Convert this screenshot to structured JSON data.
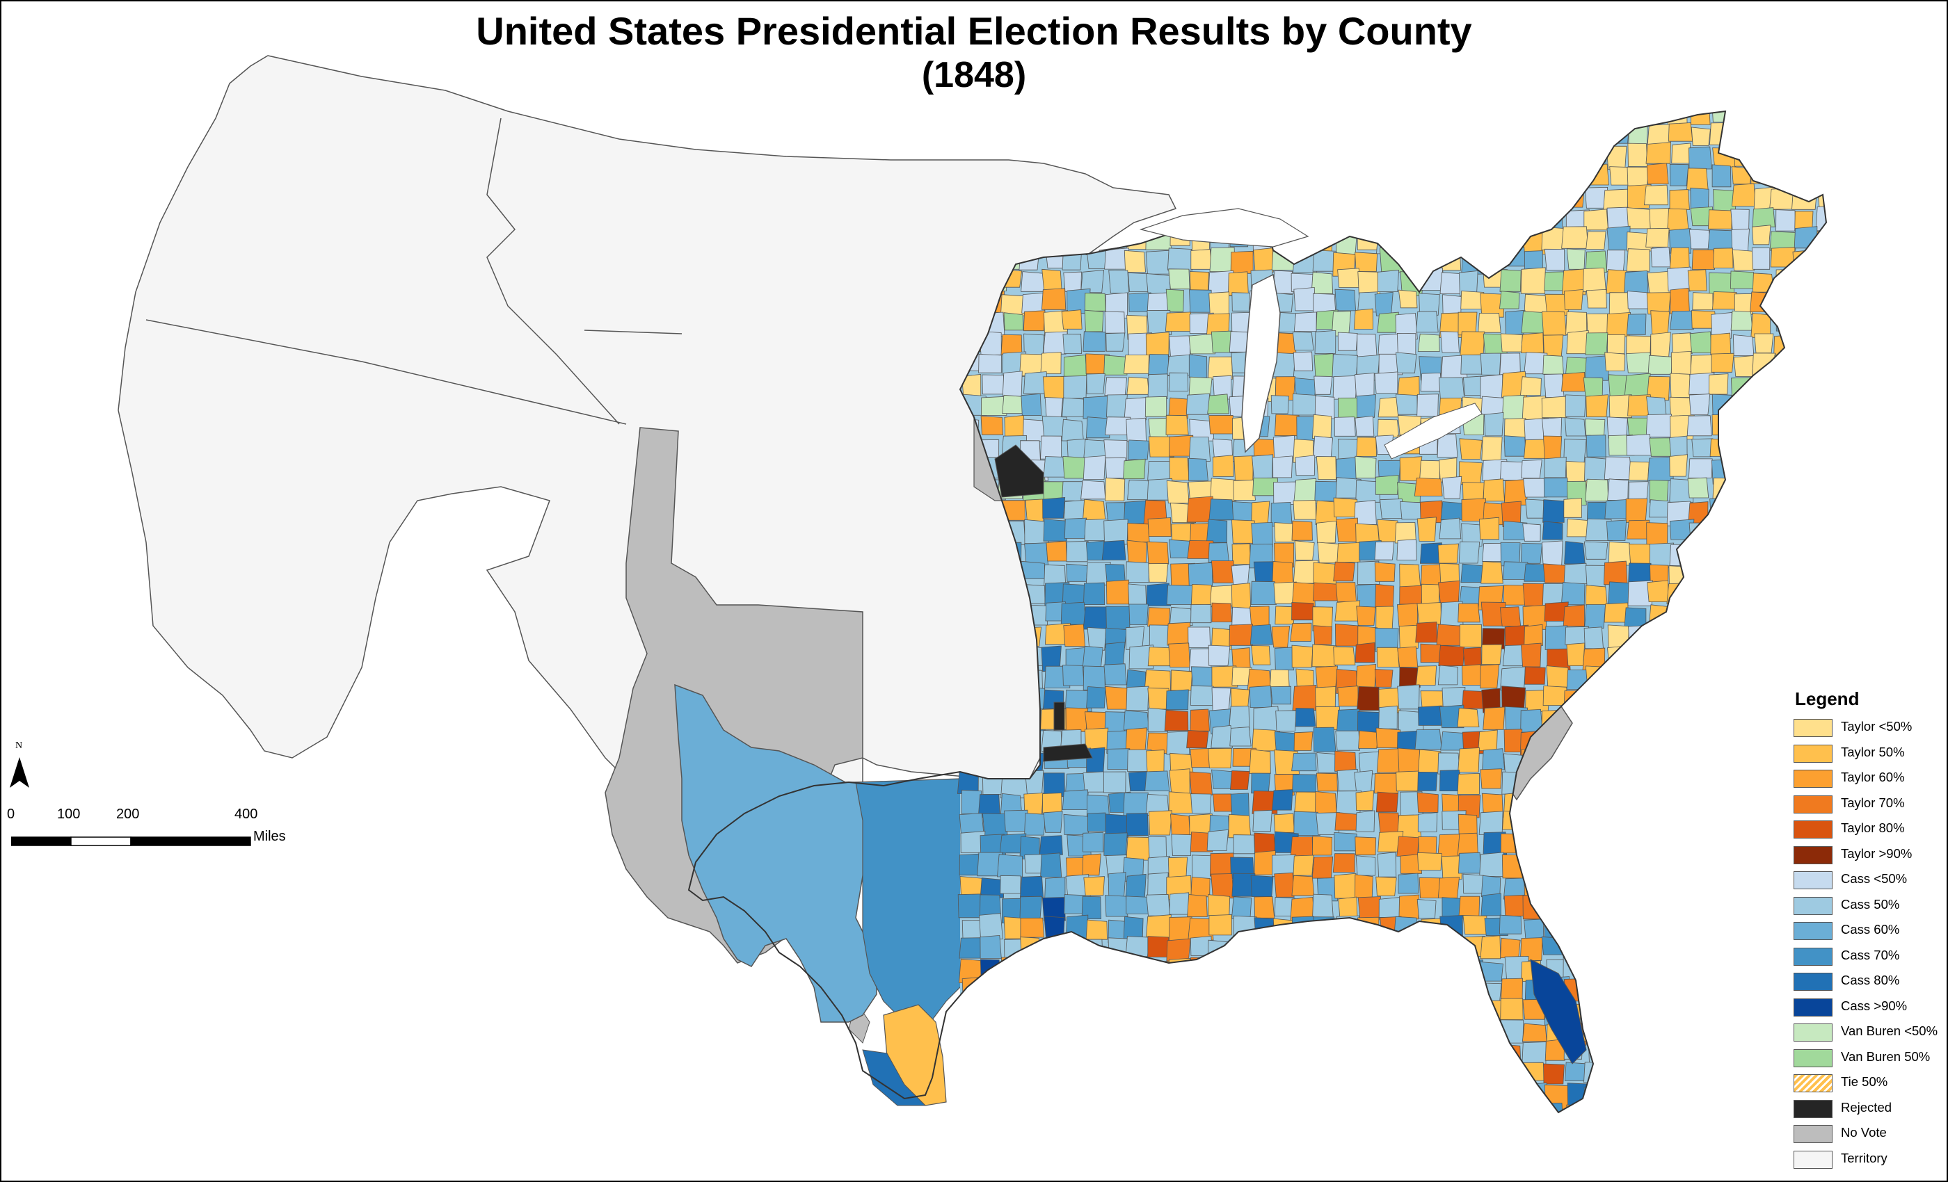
{
  "title_line1": "United States Presidential Election Results by County",
  "title_line2": "(1848)",
  "colors": {
    "territory": "#f5f5f5",
    "no_vote": "#bdbdbd",
    "border": "#555555",
    "taylor_lt50": "#ffe08c",
    "taylor_50": "#ffc04d",
    "taylor_60": "#fca030",
    "taylor_70": "#f07a1f",
    "taylor_80": "#d95410",
    "taylor_gt90": "#8c2a08",
    "cass_lt50": "#c6dbef",
    "cass_50": "#9ecae1",
    "cass_60": "#6baed6",
    "cass_70": "#4292c6",
    "cass_80": "#2171b5",
    "cass_gt90": "#08459a",
    "vanburen_lt50": "#c7e9c0",
    "vanburen_50": "#a1d99b",
    "rejected": "#252525"
  },
  "legend": {
    "title": "Legend",
    "items": [
      {
        "label": "Taylor <50%",
        "color": "#ffe08c",
        "pattern": false
      },
      {
        "label": "Taylor 50%",
        "color": "#ffc04d",
        "pattern": false
      },
      {
        "label": "Taylor 60%",
        "color": "#fca030",
        "pattern": false
      },
      {
        "label": "Taylor 70%",
        "color": "#f07a1f",
        "pattern": false
      },
      {
        "label": "Taylor 80%",
        "color": "#d95410",
        "pattern": false
      },
      {
        "label": "Taylor >90%",
        "color": "#8c2a08",
        "pattern": false
      },
      {
        "label": "Cass <50%",
        "color": "#c6dbef",
        "pattern": false
      },
      {
        "label": "Cass 50%",
        "color": "#9ecae1",
        "pattern": false
      },
      {
        "label": "Cass 60%",
        "color": "#6baed6",
        "pattern": false
      },
      {
        "label": "Cass 70%",
        "color": "#4292c6",
        "pattern": false
      },
      {
        "label": "Cass 80%",
        "color": "#2171b5",
        "pattern": false
      },
      {
        "label": "Cass >90%",
        "color": "#08459a",
        "pattern": false
      },
      {
        "label": "Van Buren <50%",
        "color": "#c7e9c0",
        "pattern": false
      },
      {
        "label": "Van Buren 50%",
        "color": "#a1d99b",
        "pattern": false
      },
      {
        "label": "Tie 50%",
        "color": "#ffc04d",
        "pattern": true
      },
      {
        "label": "Rejected",
        "color": "#252525",
        "pattern": false
      },
      {
        "label": "No Vote",
        "color": "#bdbdbd",
        "pattern": false
      },
      {
        "label": "Territory",
        "color": "#f5f5f5",
        "pattern": false
      }
    ]
  },
  "scale_bar": {
    "ticks": [
      "0",
      "100",
      "200",
      "400"
    ],
    "unit": "Miles"
  },
  "north_arrow": {
    "label": "N",
    "icon": "north-arrow-icon"
  }
}
